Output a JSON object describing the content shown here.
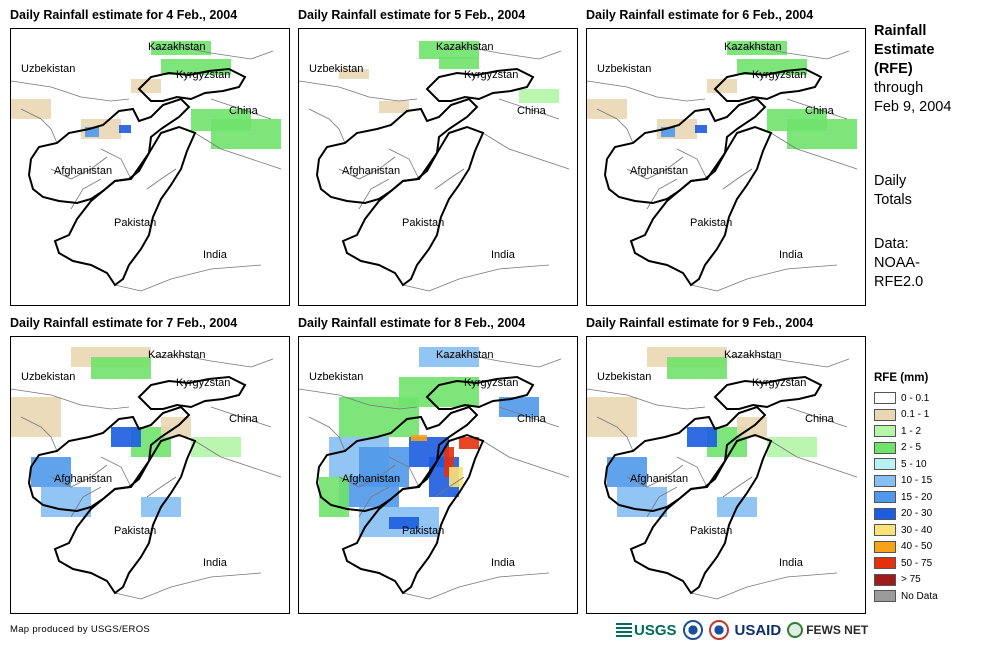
{
  "panels": [
    {
      "title": "Daily Rainfall estimate for 4 Feb., 2004",
      "rain_level": "light"
    },
    {
      "title": "Daily Rainfall estimate for 5 Feb., 2004",
      "rain_level": "minimal"
    },
    {
      "title": "Daily Rainfall estimate for 6 Feb., 2004",
      "rain_level": "light"
    },
    {
      "title": "Daily Rainfall estimate for 7 Feb., 2004",
      "rain_level": "moderate"
    },
    {
      "title": "Daily Rainfall estimate for 8 Feb., 2004",
      "rain_level": "heavy"
    },
    {
      "title": "Daily Rainfall estimate for 9 Feb., 2004",
      "rain_level": "moderate"
    }
  ],
  "map_labels": {
    "kazakhstan": "Kazakhstan",
    "uzbekistan": "Uzbekistan",
    "kyrgyzstan": "Kyrgyzstan",
    "china": "China",
    "afghanistan": "Afghanistan",
    "pakistan": "Pakistan",
    "india": "India"
  },
  "side": {
    "title_line1": "Rainfall",
    "title_line2": "Estimate",
    "title_line3": "(RFE)",
    "through_1": "through",
    "through_2": "Feb 9, 2004",
    "daily_1": "Daily",
    "daily_2": "Totals",
    "data_1": "Data:",
    "data_2": "NOAA-",
    "data_3": "RFE2.0"
  },
  "legend": {
    "title": "RFE (mm)",
    "items": [
      {
        "label": "0 - 0.1",
        "color": "#ffffff"
      },
      {
        "label": "0.1 - 1",
        "color": "#e9d7b4"
      },
      {
        "label": "1 - 2",
        "color": "#b4f5a8"
      },
      {
        "label": "2 - 5",
        "color": "#6fe26a"
      },
      {
        "label": "5 - 10",
        "color": "#b9f2f5"
      },
      {
        "label": "10 - 15",
        "color": "#86bff2"
      },
      {
        "label": "15 - 20",
        "color": "#4f98ea"
      },
      {
        "label": "20 - 30",
        "color": "#1c5ce0"
      },
      {
        "label": "30 - 40",
        "color": "#fbe37a"
      },
      {
        "label": "40 - 50",
        "color": "#f6a21a"
      },
      {
        "label": "50 - 75",
        "color": "#e5300e"
      },
      {
        "label": "> 75",
        "color": "#a01c1c"
      },
      {
        "label": "No Data",
        "color": "#9b9b9b"
      }
    ]
  },
  "credit": "Map produced by USGS/EROS",
  "logos": {
    "usgs": "USGS",
    "usaid": "USAID",
    "fewsnet": "FEWS NET"
  }
}
